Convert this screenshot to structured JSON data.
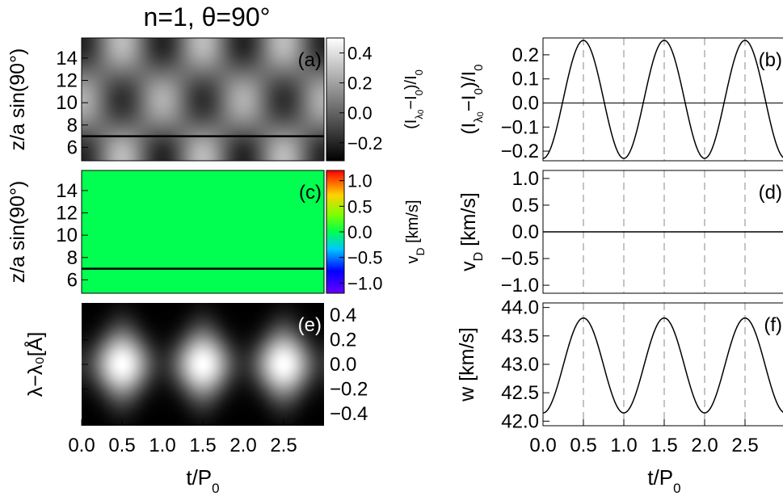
{
  "figure": {
    "title": "n=1, θ=90°"
  },
  "chart_data": [
    {
      "id": "a",
      "type": "heatmap",
      "panel_label": "(a)",
      "ylabel": "z/a sin(90°)",
      "yticks": [
        "6",
        "8",
        "10",
        "12",
        "14"
      ],
      "ylim": [
        4.8,
        15.8
      ],
      "xlim": [
        0,
        3
      ],
      "line_z": 7.0,
      "colorbar": {
        "scale": "grayscale",
        "ticks": [
          "0.4",
          "0.2",
          "0.0",
          "−0.2"
        ],
        "tick_values": [
          0.4,
          0.2,
          0.0,
          -0.2
        ],
        "range": [
          -0.32,
          0.5
        ],
        "label": "(Iλ₀−I₀)/I₀"
      }
    },
    {
      "id": "b",
      "type": "line",
      "panel_label": "(b)",
      "ylabel": "(Iλ₀−I₀)/I₀",
      "yticks": [
        "0.2",
        "0.1",
        "0.0",
        "−0.1",
        "−0.2"
      ],
      "ytick_values": [
        0.2,
        0.1,
        0.0,
        -0.1,
        -0.2
      ],
      "ylim": [
        -0.24,
        0.27
      ],
      "xlim": [
        0,
        3
      ],
      "series": [
        {
          "mean": 0.015,
          "amplitude": 0.245,
          "period": 1.0,
          "peak_at": 0.5
        }
      ],
      "hline": 0.0,
      "vlines": [
        0.5,
        1.0,
        1.5,
        2.0,
        2.5
      ]
    },
    {
      "id": "c",
      "type": "heatmap",
      "panel_label": "(c)",
      "ylabel": "z/a sin(90°)",
      "yticks": [
        "6",
        "8",
        "10",
        "12",
        "14"
      ],
      "ylim": [
        4.8,
        15.8
      ],
      "xlim": [
        0,
        3
      ],
      "uniform_value": 0.0,
      "line_z": 7.0,
      "colorbar": {
        "scale": "rainbow",
        "ticks": [
          "1.0",
          "0.5",
          "0.0",
          "−0.5",
          "−1.0"
        ],
        "tick_values": [
          1.0,
          0.5,
          0.0,
          -0.5,
          -1.0
        ],
        "range": [
          -1.2,
          1.2
        ],
        "label": "vD [km/s]"
      }
    },
    {
      "id": "d",
      "type": "line",
      "panel_label": "(d)",
      "ylabel": "vD [km/s]",
      "yticks": [
        "1.0",
        "0.5",
        "0.0",
        "−0.5",
        "−1.0"
      ],
      "ytick_values": [
        1.0,
        0.5,
        0.0,
        -0.5,
        -1.0
      ],
      "ylim": [
        -1.15,
        1.15
      ],
      "xlim": [
        0,
        3
      ],
      "series": [
        {
          "mean": 0.0,
          "amplitude": 0.0,
          "period": 1.0,
          "peak_at": 0.5
        }
      ],
      "vlines": [
        0.5,
        1.0,
        1.5,
        2.0,
        2.5
      ]
    },
    {
      "id": "e",
      "type": "heatmap",
      "panel_label": "(e)",
      "ylabel": "λ−λ₀[Å]",
      "yticks": [
        "0.4",
        "0.2",
        "0.0",
        "−0.2",
        "−0.4"
      ],
      "ytick_values": [
        0.4,
        0.2,
        0.0,
        -0.2,
        -0.4
      ],
      "ylim": [
        -0.5,
        0.5
      ],
      "xlim": [
        0,
        3
      ]
    },
    {
      "id": "f",
      "type": "line",
      "panel_label": "(f)",
      "ylabel": "w [km/s]",
      "yticks": [
        "44.0",
        "43.5",
        "43.0",
        "42.5",
        "42.0"
      ],
      "ytick_values": [
        44.0,
        43.5,
        43.0,
        42.5,
        42.0
      ],
      "ylim": [
        41.92,
        44.08
      ],
      "xlim": [
        0,
        3
      ],
      "series": [
        {
          "mean": 42.98,
          "amplitude": 0.835,
          "period": 1.0,
          "peak_at": 0.5
        }
      ],
      "vlines": [
        0.5,
        1.0,
        1.5,
        2.0,
        2.5
      ]
    }
  ],
  "xaxis": {
    "ticks": [
      "0.0",
      "0.5",
      "1.0",
      "1.5",
      "2.0",
      "2.5"
    ],
    "tick_values": [
      0.0,
      0.5,
      1.0,
      1.5,
      2.0,
      2.5
    ],
    "label": "t/P₀"
  }
}
